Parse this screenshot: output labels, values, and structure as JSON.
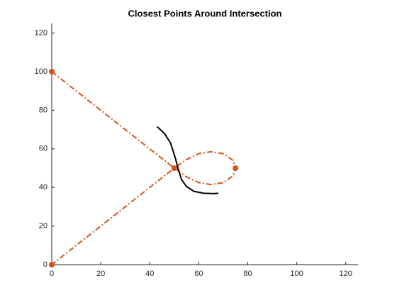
{
  "chart_data": {
    "type": "line",
    "title": "Closest Points Around Intersection",
    "xlim": [
      0,
      125
    ],
    "ylim": [
      0,
      125
    ],
    "xticks": [
      0,
      20,
      40,
      60,
      80,
      100,
      120
    ],
    "yticks": [
      0,
      20,
      40,
      60,
      80,
      100,
      120
    ],
    "series": [
      {
        "color": "#d95319",
        "linestyle": "dashdot",
        "marker": null,
        "x": [
          0,
          50,
          55,
          60,
          65,
          70,
          74,
          75,
          74,
          70,
          65,
          60,
          55,
          50,
          0
        ],
        "values": [
          100,
          50,
          54.5,
          57.5,
          58.5,
          57.5,
          54,
          50,
          46,
          42.5,
          41.5,
          42.5,
          45.5,
          50,
          0
        ]
      },
      {
        "color": "#d95319",
        "linestyle": "none",
        "marker": "circle",
        "x": [
          0,
          50,
          75,
          0
        ],
        "values": [
          100,
          50,
          50,
          0
        ]
      },
      {
        "color": "#000000",
        "linestyle": "solid",
        "marker": null,
        "x": [
          43,
          46,
          48.5,
          50.5,
          51.5,
          53,
          55,
          58,
          62,
          66,
          68
        ],
        "values": [
          71.5,
          68,
          63,
          55,
          50,
          44,
          40.5,
          38,
          37,
          36.8,
          37
        ]
      }
    ]
  }
}
